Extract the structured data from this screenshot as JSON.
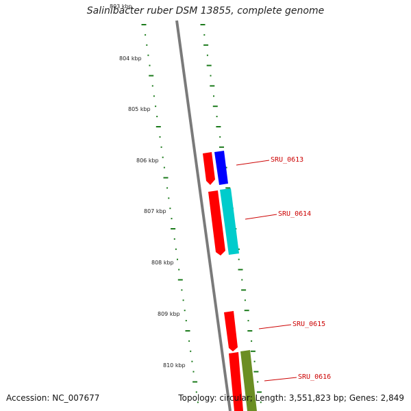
{
  "title": "Salinibacter ruber DSM 13855, complete genome",
  "footer": {
    "accession": "Accession: NC_007677",
    "summary": "Topology: circular; Length: 3,551,823 bp; Genes: 2,849"
  },
  "axis": {
    "unit": "kbp",
    "top_partial_label": "803 kbp",
    "labels": [
      "804 kbp",
      "805 kbp",
      "806 kbp",
      "807 kbp",
      "808 kbp",
      "809 kbp",
      "810 kbp"
    ]
  },
  "genes": [
    {
      "label": "SRU_0613",
      "color": "#ff0000"
    },
    {
      "label": "SRU_0614",
      "color": "#ff0000"
    },
    {
      "label": "SRU_0615",
      "color": "#ff0000"
    },
    {
      "label": "SRU_0616",
      "color": "#ff0000"
    }
  ],
  "track_colors": {
    "backbone": "#7a7a7a",
    "gc_ticks": "#1a7a1a",
    "red": "#ff0000",
    "blue": "#0000ff",
    "cyan": "#00cccc",
    "olive": "#6b8e23",
    "label": "#cc0000"
  }
}
